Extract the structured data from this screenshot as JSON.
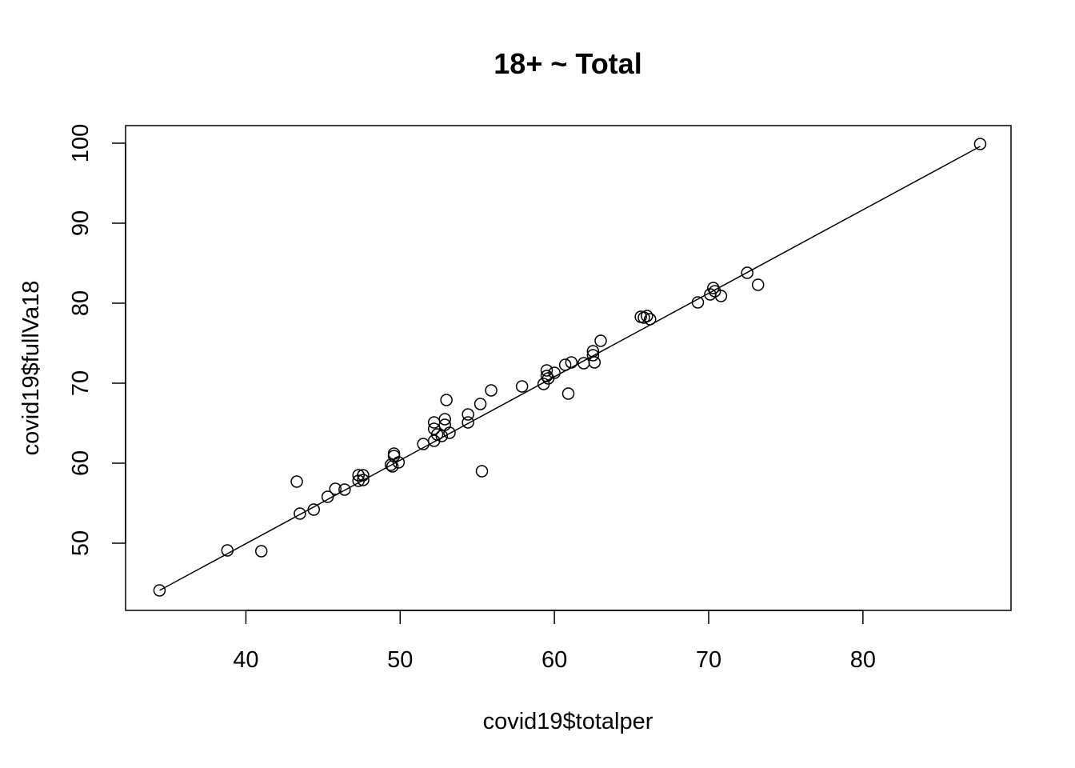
{
  "chart_data": {
    "type": "scatter",
    "title": "18+ ~ Total",
    "xlabel": "covid19$totalper",
    "ylabel": "covid19$fullVa18",
    "xlim": [
      32.2,
      89.6
    ],
    "ylim": [
      41.6,
      102.2
    ],
    "xticks": [
      40,
      50,
      60,
      70,
      80
    ],
    "yticks": [
      50,
      60,
      70,
      80,
      90,
      100
    ],
    "grid": false,
    "legend": "none",
    "regression_line": {
      "x1": 34.4,
      "y1": 44.1,
      "x2": 87.6,
      "y2": 99.6
    },
    "points": [
      {
        "x": 34.4,
        "y": 44.1
      },
      {
        "x": 38.8,
        "y": 49.1
      },
      {
        "x": 41.0,
        "y": 49.0
      },
      {
        "x": 43.3,
        "y": 57.7
      },
      {
        "x": 43.5,
        "y": 53.7
      },
      {
        "x": 44.4,
        "y": 54.2
      },
      {
        "x": 45.3,
        "y": 55.8
      },
      {
        "x": 45.8,
        "y": 56.8
      },
      {
        "x": 46.4,
        "y": 56.7
      },
      {
        "x": 47.3,
        "y": 58.5
      },
      {
        "x": 47.3,
        "y": 57.8
      },
      {
        "x": 47.6,
        "y": 57.9
      },
      {
        "x": 47.6,
        "y": 58.5
      },
      {
        "x": 49.4,
        "y": 59.8
      },
      {
        "x": 49.5,
        "y": 59.6
      },
      {
        "x": 49.6,
        "y": 61.2
      },
      {
        "x": 49.6,
        "y": 60.9
      },
      {
        "x": 49.9,
        "y": 60.1
      },
      {
        "x": 51.5,
        "y": 62.4
      },
      {
        "x": 52.2,
        "y": 65.1
      },
      {
        "x": 52.2,
        "y": 64.3
      },
      {
        "x": 52.2,
        "y": 62.8
      },
      {
        "x": 52.4,
        "y": 63.6
      },
      {
        "x": 52.7,
        "y": 63.4
      },
      {
        "x": 52.9,
        "y": 64.8
      },
      {
        "x": 52.9,
        "y": 65.5
      },
      {
        "x": 53.0,
        "y": 67.9
      },
      {
        "x": 53.2,
        "y": 63.8
      },
      {
        "x": 54.4,
        "y": 66.1
      },
      {
        "x": 54.4,
        "y": 65.1
      },
      {
        "x": 55.2,
        "y": 67.4
      },
      {
        "x": 55.3,
        "y": 59.0
      },
      {
        "x": 55.9,
        "y": 69.1
      },
      {
        "x": 57.9,
        "y": 69.6
      },
      {
        "x": 59.3,
        "y": 69.9
      },
      {
        "x": 59.5,
        "y": 71.6
      },
      {
        "x": 59.5,
        "y": 70.9
      },
      {
        "x": 59.6,
        "y": 70.6
      },
      {
        "x": 60.0,
        "y": 71.3
      },
      {
        "x": 60.7,
        "y": 72.3
      },
      {
        "x": 60.9,
        "y": 68.7
      },
      {
        "x": 61.1,
        "y": 72.6
      },
      {
        "x": 61.9,
        "y": 72.5
      },
      {
        "x": 62.5,
        "y": 74.0
      },
      {
        "x": 62.5,
        "y": 73.5
      },
      {
        "x": 62.6,
        "y": 72.6
      },
      {
        "x": 63.0,
        "y": 75.3
      },
      {
        "x": 65.6,
        "y": 78.3
      },
      {
        "x": 65.8,
        "y": 78.2
      },
      {
        "x": 66.0,
        "y": 78.4
      },
      {
        "x": 66.2,
        "y": 78.0
      },
      {
        "x": 69.3,
        "y": 80.1
      },
      {
        "x": 70.1,
        "y": 81.1
      },
      {
        "x": 70.3,
        "y": 81.9
      },
      {
        "x": 70.4,
        "y": 81.5
      },
      {
        "x": 70.8,
        "y": 80.9
      },
      {
        "x": 72.5,
        "y": 83.8
      },
      {
        "x": 73.2,
        "y": 82.3
      },
      {
        "x": 87.6,
        "y": 99.9
      }
    ]
  }
}
